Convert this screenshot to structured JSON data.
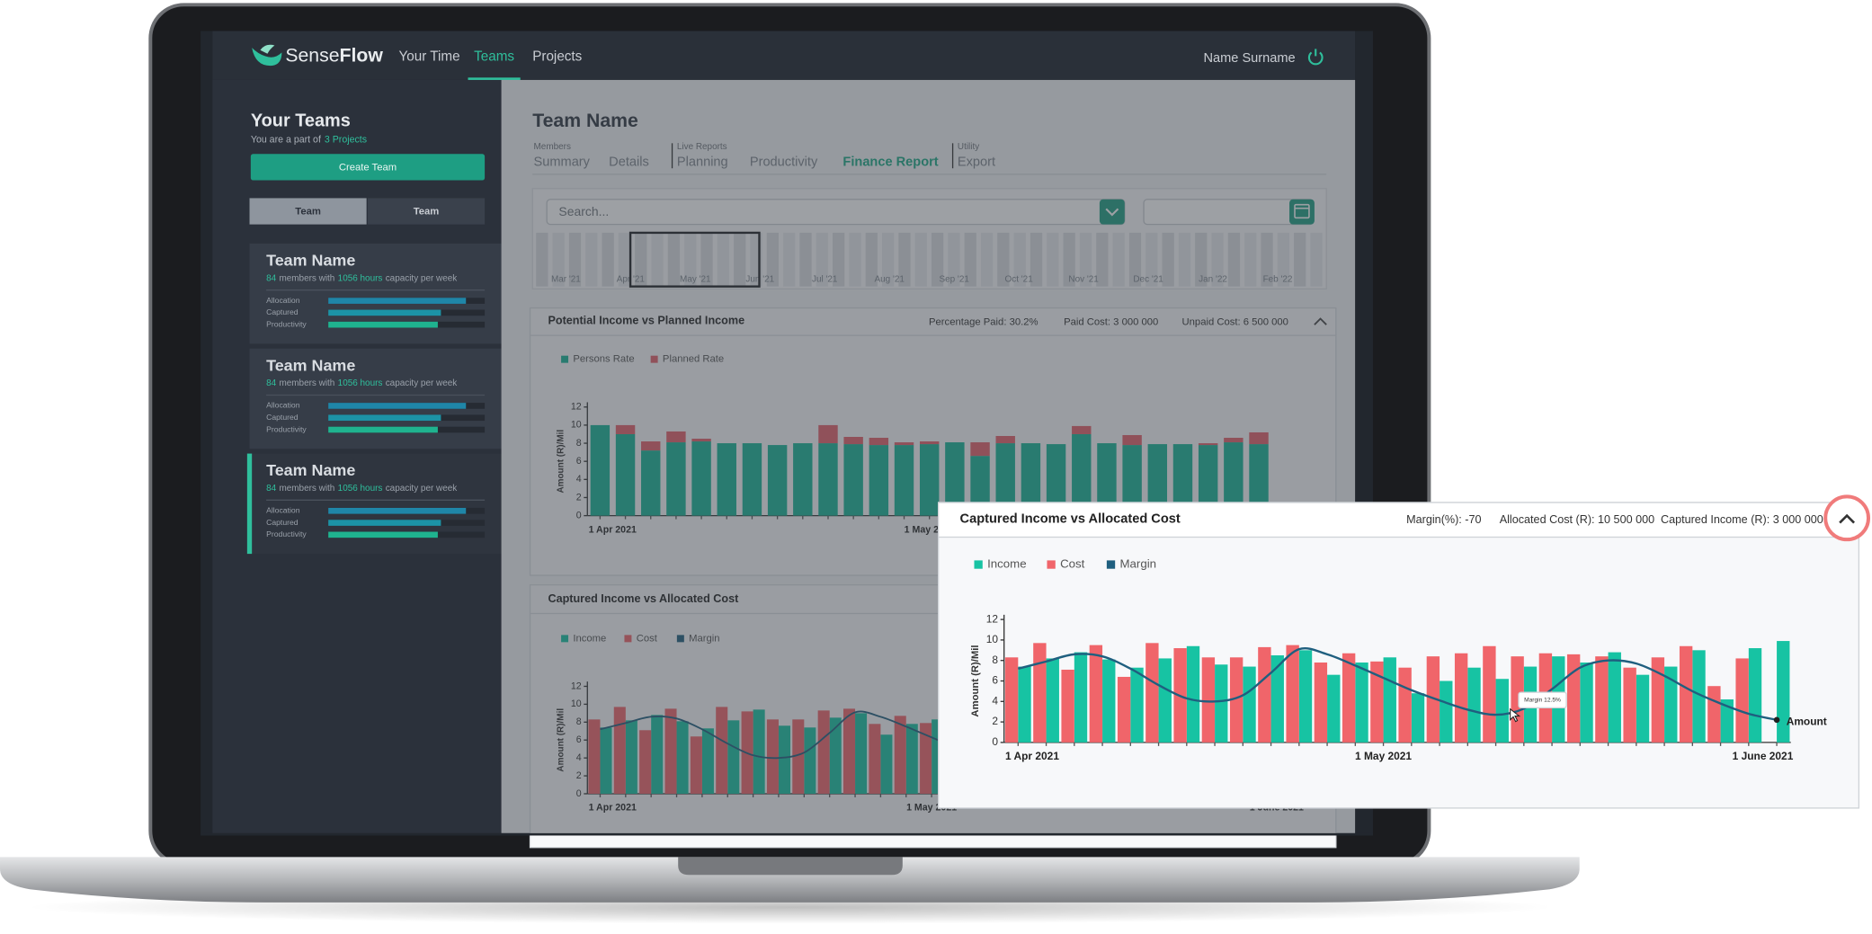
{
  "nav": {
    "brand_a": "Sense",
    "brand_b": "Flow",
    "items": [
      "Your Time",
      "Teams",
      "Projects"
    ],
    "active": 1,
    "user": "Name Surname"
  },
  "sidebar": {
    "title": "Your Teams",
    "subtitle": "You are a part of",
    "projects": "3 Projects",
    "create": "Create Team",
    "toggle": [
      "Team",
      "Team"
    ],
    "active_toggle": 0,
    "active_team": 2,
    "teams": [
      {
        "name": "Team Name",
        "members": "84",
        "members_text": "members with",
        "hours": "1056 hours",
        "hours_text": "capacity per week",
        "metrics": [
          {
            "label": "Allocation",
            "value": 88
          },
          {
            "label": "Captured",
            "value": 72
          },
          {
            "label": "Productivity",
            "value": 70
          }
        ]
      },
      {
        "name": "Team Name",
        "members": "84",
        "members_text": "members with",
        "hours": "1056 hours",
        "hours_text": "capacity per week",
        "metrics": [
          {
            "label": "Allocation",
            "value": 88
          },
          {
            "label": "Captured",
            "value": 72
          },
          {
            "label": "Productivity",
            "value": 70
          }
        ]
      },
      {
        "name": "Team Name",
        "members": "84",
        "members_text": "members with",
        "hours": "1056 hours",
        "hours_text": "capacity per week",
        "metrics": [
          {
            "label": "Allocation",
            "value": 88
          },
          {
            "label": "Captured",
            "value": 72
          },
          {
            "label": "Productivity",
            "value": 70
          }
        ]
      }
    ]
  },
  "main": {
    "title": "Team Name",
    "tab_groups": [
      {
        "label": "Members",
        "tabs": [
          "Summary",
          "Details"
        ]
      },
      {
        "label": "Live Reports",
        "tabs": [
          "Planning",
          "Productivity",
          "Finance Report"
        ]
      },
      {
        "label": "Utility",
        "tabs": [
          "Export"
        ]
      }
    ],
    "active_tab": [
      1,
      2
    ],
    "search": "Search...",
    "months": [
      "Mar '21",
      "Apr '21",
      "May '21",
      "Jun '21",
      "Jul '21",
      "Aug '21",
      "Sep '21",
      "Oct '21",
      "Nov '21",
      "Dec '21",
      "Jan '22",
      "Feb '22"
    ]
  },
  "finance": [
    {
      "chart_data": {
        "type": "bar",
        "stacked": true,
        "title": "Potential Income vs Planned Income",
        "stats": [
          "Percentage Paid: 30.2%",
          "Paid Cost: 3 000 000",
          "Unpaid Cost: 6 500 000"
        ],
        "y_label": "Amount (R)/Mil",
        "categories": [
          "1 Apr 2021",
          null,
          null,
          null,
          null,
          null,
          null,
          null,
          null,
          null,
          null,
          null,
          null,
          "1 May 2021",
          null,
          null,
          null,
          null,
          null,
          null,
          null,
          null,
          null,
          null,
          null,
          null,
          null
        ],
        "series": [
          {
            "name": "Persons Rate",
            "color": "#17b596",
            "values": [
              10,
              9,
              7.2,
              8.1,
              8.2,
              8,
              8,
              7.8,
              8,
              8,
              7.9,
              7.8,
              7.8,
              7.9,
              8.1,
              6.6,
              8,
              8,
              7.9,
              9,
              8,
              7.8,
              7.9,
              7.9,
              7.8,
              8.1,
              7.9
            ]
          },
          {
            "name": "Planned Rate",
            "color": "#e4606a",
            "values": [
              0,
              1,
              1,
              1.2,
              0.3,
              0,
              0,
              0,
              0,
              2,
              0.8,
              0.8,
              0.3,
              0.3,
              0,
              1.5,
              0.8,
              0,
              0,
              0.9,
              0,
              1.1,
              0,
              0,
              0.2,
              0.5,
              1.3
            ]
          }
        ],
        "ylim": [
          0,
          12
        ],
        "yticks": [
          0,
          2,
          4,
          6,
          8,
          10,
          12
        ]
      }
    },
    {
      "chart_data": {
        "type": "bar",
        "stacked": false,
        "title": "Captured Income vs Allocated Cost",
        "stats": [
          "Margin(%): -70",
          "Allocated Cost (R): 10 500 000",
          "Captured Income (R): 3 000 000"
        ],
        "y_label": "Amount (R)/Mil",
        "end_label": "Amount",
        "tooltip": "Margin 12.5%",
        "categories": [
          "1 Apr 2021",
          null,
          null,
          null,
          null,
          null,
          null,
          null,
          null,
          null,
          null,
          null,
          null,
          "1 May 2021",
          null,
          null,
          null,
          null,
          null,
          null,
          null,
          null,
          null,
          null,
          null,
          null,
          null,
          "1 June 2021"
        ],
        "series": [
          {
            "name": "Income",
            "color": "#17c3a3",
            "values": [
              7.4,
              8.2,
              8.8,
              8.1,
              7.3,
              8.2,
              9.4,
              7.6,
              7.4,
              8.5,
              9,
              6.6,
              7.8,
              8.3,
              4.8,
              6,
              7.3,
              6.2,
              7.4,
              8.4,
              7.8,
              8.8,
              6.6,
              7.4,
              9,
              4.2,
              9.2,
              9.9
            ]
          },
          {
            "name": "Cost",
            "color": "#f0656a",
            "values": [
              8.3,
              9.7,
              7.1,
              9.5,
              6.4,
              9.7,
              9.2,
              8.3,
              8.3,
              9.3,
              9.5,
              7.8,
              8.7,
              7.9,
              7.3,
              8.4,
              8.7,
              9.4,
              8.4,
              8.7,
              8.6,
              8.4,
              7.3,
              8.3,
              9.4,
              5.5,
              8.2,
              null
            ]
          },
          {
            "name": "Margin",
            "color": "#1f5f7f",
            "type": "line",
            "values": [
              7.2,
              7.9,
              8.6,
              8.4,
              7.2,
              5.6,
              4.3,
              4,
              4.6,
              6.8,
              9.1,
              8.6,
              7.5,
              6.3,
              5.1,
              4.1,
              3.2,
              2.7,
              3.3,
              5.2,
              7.3,
              8,
              7.7,
              6.5,
              5,
              3.8,
              2.8,
              2.2
            ]
          }
        ],
        "ylim": [
          0,
          12
        ],
        "yticks": [
          0,
          2,
          4,
          6,
          8,
          10,
          12
        ]
      }
    }
  ]
}
